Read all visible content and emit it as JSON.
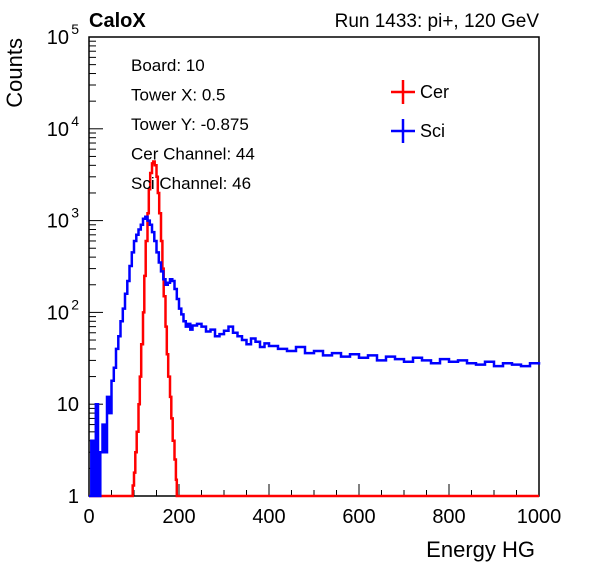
{
  "header": {
    "experiment": "CaloX",
    "run_info": "Run 1433: pi+, 120 GeV"
  },
  "info_box": [
    {
      "key": "board",
      "text": "Board: 10"
    },
    {
      "key": "tower-x",
      "text": "Tower X: 0.5"
    },
    {
      "key": "tower-y",
      "text": "Tower Y: -0.875"
    },
    {
      "key": "cer-channel",
      "text": "Cer Channel: 44"
    },
    {
      "key": "sci-channel",
      "text": "Sci Channel: 46"
    }
  ],
  "chart_data": {
    "type": "line",
    "xlabel": "Energy HG",
    "ylabel": "Counts",
    "xlim": [
      0,
      1000
    ],
    "ylim": [
      1,
      100000
    ],
    "y_scale": "log",
    "grid": false,
    "legend_position": "top-right",
    "x_ticks": [
      "0",
      "200",
      "400",
      "600",
      "800",
      "1000"
    ],
    "y_ticks": [
      {
        "value": 1,
        "base": "1",
        "exp": ""
      },
      {
        "value": 10,
        "base": "10",
        "exp": ""
      },
      {
        "value": 100,
        "base": "10",
        "exp": "2"
      },
      {
        "value": 1000,
        "base": "10",
        "exp": "3"
      },
      {
        "value": 10000,
        "base": "10",
        "exp": "4"
      },
      {
        "value": 100000,
        "base": "10",
        "exp": "5"
      }
    ],
    "series": [
      {
        "name": "Cer",
        "color": "#ff0000",
        "x": [
          0,
          95,
          97,
          100,
          103,
          106,
          110,
          113,
          116,
          120,
          123,
          126,
          130,
          133,
          136,
          140,
          143,
          146,
          150,
          153,
          156,
          160,
          163,
          166,
          170,
          173,
          176,
          180,
          183,
          186,
          190,
          193,
          195,
          230,
          1000
        ],
        "y": [
          1,
          1,
          1.3,
          1.8,
          3,
          5,
          10,
          20,
          45,
          100,
          250,
          600,
          1200,
          2200,
          3300,
          4200,
          4400,
          4000,
          3000,
          2000,
          1200,
          600,
          300,
          150,
          70,
          35,
          20,
          12,
          7,
          4,
          2.5,
          1.5,
          1,
          1,
          1
        ]
      },
      {
        "name": "Sci",
        "color": "#0000ff",
        "x": [
          0,
          5,
          10,
          15,
          20,
          25,
          30,
          35,
          40,
          45,
          50,
          55,
          60,
          65,
          70,
          75,
          80,
          85,
          90,
          95,
          100,
          105,
          110,
          115,
          120,
          125,
          130,
          135,
          140,
          145,
          150,
          155,
          160,
          165,
          170,
          175,
          180,
          185,
          190,
          195,
          200,
          205,
          210,
          215,
          220,
          225,
          230,
          240,
          250,
          260,
          270,
          280,
          290,
          300,
          310,
          320,
          330,
          340,
          350,
          360,
          370,
          380,
          390,
          400,
          420,
          440,
          460,
          480,
          500,
          520,
          540,
          560,
          580,
          600,
          620,
          640,
          660,
          680,
          700,
          720,
          740,
          760,
          780,
          800,
          820,
          840,
          860,
          880,
          900,
          920,
          940,
          960,
          980,
          1000
        ],
        "y": [
          1,
          4,
          1,
          10,
          1,
          3,
          6,
          3,
          12,
          8,
          18,
          25,
          40,
          55,
          80,
          110,
          160,
          220,
          320,
          450,
          600,
          700,
          800,
          900,
          1050,
          1100,
          1000,
          900,
          750,
          600,
          450,
          350,
          280,
          230,
          200,
          210,
          230,
          220,
          180,
          140,
          110,
          95,
          80,
          70,
          75,
          65,
          72,
          75,
          70,
          62,
          65,
          55,
          58,
          63,
          70,
          60,
          55,
          50,
          45,
          52,
          48,
          42,
          46,
          43,
          40,
          38,
          42,
          36,
          38,
          34,
          36,
          33,
          35,
          32,
          34,
          30,
          33,
          31,
          29,
          32,
          30,
          28,
          31,
          29,
          30,
          28,
          27,
          29,
          26,
          28,
          27,
          26,
          28,
          27
        ]
      }
    ]
  }
}
